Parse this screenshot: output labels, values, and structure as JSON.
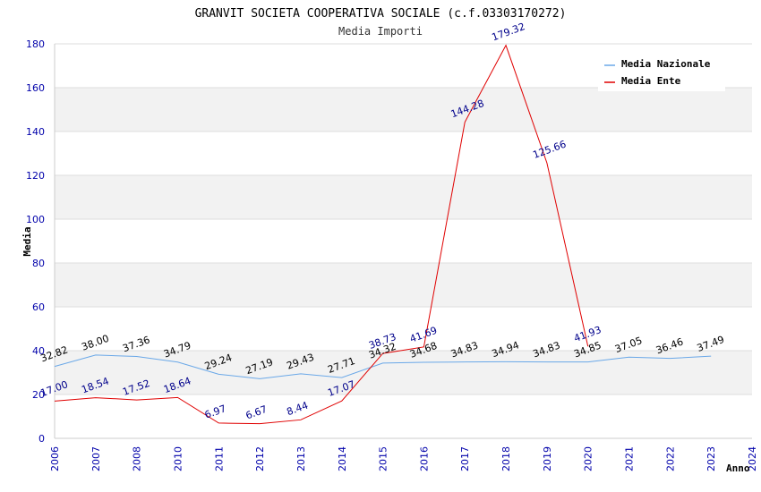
{
  "chart_data": {
    "type": "line",
    "title": "GRANVIT SOCIETA COOPERATIVA SOCIALE (c.f.03303170272)",
    "subtitle": "Media Importi",
    "xlabel": "Anno",
    "ylabel": "Media",
    "ylim": [
      0,
      180
    ],
    "yticks": [
      0,
      20,
      40,
      60,
      80,
      100,
      120,
      140,
      160,
      180
    ],
    "categories": [
      "2006",
      "2007",
      "2008",
      "2010",
      "2011",
      "2012",
      "2013",
      "2014",
      "2015",
      "2016",
      "2017",
      "2018",
      "2019",
      "2020",
      "2021",
      "2022",
      "2023",
      "2024"
    ],
    "grid": true,
    "legend_position": "top-right",
    "series": [
      {
        "name": "Media Nazionale",
        "color": "#6aa8e8",
        "label_color": "#000000",
        "values": [
          32.82,
          38.0,
          37.36,
          34.79,
          29.24,
          27.19,
          29.43,
          27.71,
          34.32,
          34.68,
          34.83,
          34.94,
          34.83,
          34.85,
          37.05,
          36.46,
          37.49,
          null
        ],
        "labels": [
          "32.82",
          "38.00",
          "37.36",
          "34.79",
          "29.24",
          "27.19",
          "29.43",
          "27.71",
          "34.32",
          "34.68",
          "34.83",
          "34.94",
          "34.83",
          "34.85",
          "37.05",
          "36.46",
          "37.49",
          null
        ]
      },
      {
        "name": "Media Ente",
        "color": "#e00000",
        "label_color": "#00008b",
        "values": [
          17.0,
          18.54,
          17.52,
          18.64,
          6.97,
          6.67,
          8.44,
          17.07,
          38.73,
          41.69,
          144.28,
          179.32,
          125.66,
          41.93,
          null,
          null,
          null,
          null
        ],
        "labels": [
          "17.00",
          "18.54",
          "17.52",
          "18.64",
          "6.97",
          "6.67",
          "8.44",
          "17.07",
          "38.73",
          "41.69",
          "144.28",
          "179.32",
          "125.66",
          "41.93",
          null,
          null,
          null,
          null
        ]
      }
    ]
  }
}
